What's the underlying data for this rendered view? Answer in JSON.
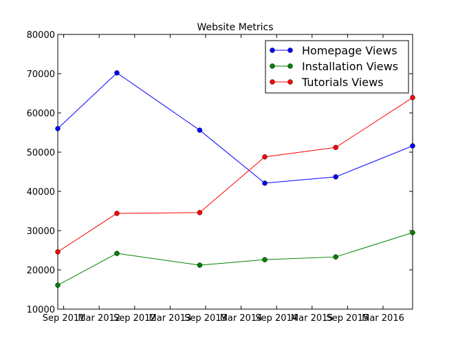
{
  "chart_data": {
    "type": "line",
    "title": "Website Metrics",
    "xlabel": "",
    "ylabel": "",
    "ylim": [
      10000,
      80000
    ],
    "yticks": [
      10000,
      20000,
      30000,
      40000,
      50000,
      60000,
      70000,
      80000
    ],
    "xlim": [
      "2011-08",
      "2016-08"
    ],
    "xticks": [
      {
        "date": "2011-09",
        "label": "Sep 2011"
      },
      {
        "date": "2012-03",
        "label": "Mar 2012"
      },
      {
        "date": "2012-09",
        "label": "Sep 2012"
      },
      {
        "date": "2013-03",
        "label": "Mar 2013"
      },
      {
        "date": "2013-09",
        "label": "Sep 2013"
      },
      {
        "date": "2014-03",
        "label": "Mar 2014"
      },
      {
        "date": "2014-09",
        "label": "Sep 2014"
      },
      {
        "date": "2015-03",
        "label": "Mar 2015"
      },
      {
        "date": "2015-09",
        "label": "Sep 2015"
      },
      {
        "date": "2016-03",
        "label": "Mar 2016"
      }
    ],
    "x": [
      "2011-08",
      "2012-06",
      "2013-08",
      "2014-07",
      "2015-07",
      "2016-08"
    ],
    "series": [
      {
        "name": "Homepage Views",
        "color": "#0000ff",
        "values": [
          56000,
          70200,
          55600,
          42100,
          43700,
          51600
        ]
      },
      {
        "name": "Installation Views",
        "color": "#008000",
        "values": [
          16100,
          24200,
          21200,
          22600,
          23300,
          29500
        ]
      },
      {
        "name": "Tutorials Views",
        "color": "#ff0000",
        "values": [
          24600,
          34400,
          34600,
          48800,
          51200,
          63900
        ]
      }
    ],
    "legend": "top-right",
    "grid": false
  }
}
